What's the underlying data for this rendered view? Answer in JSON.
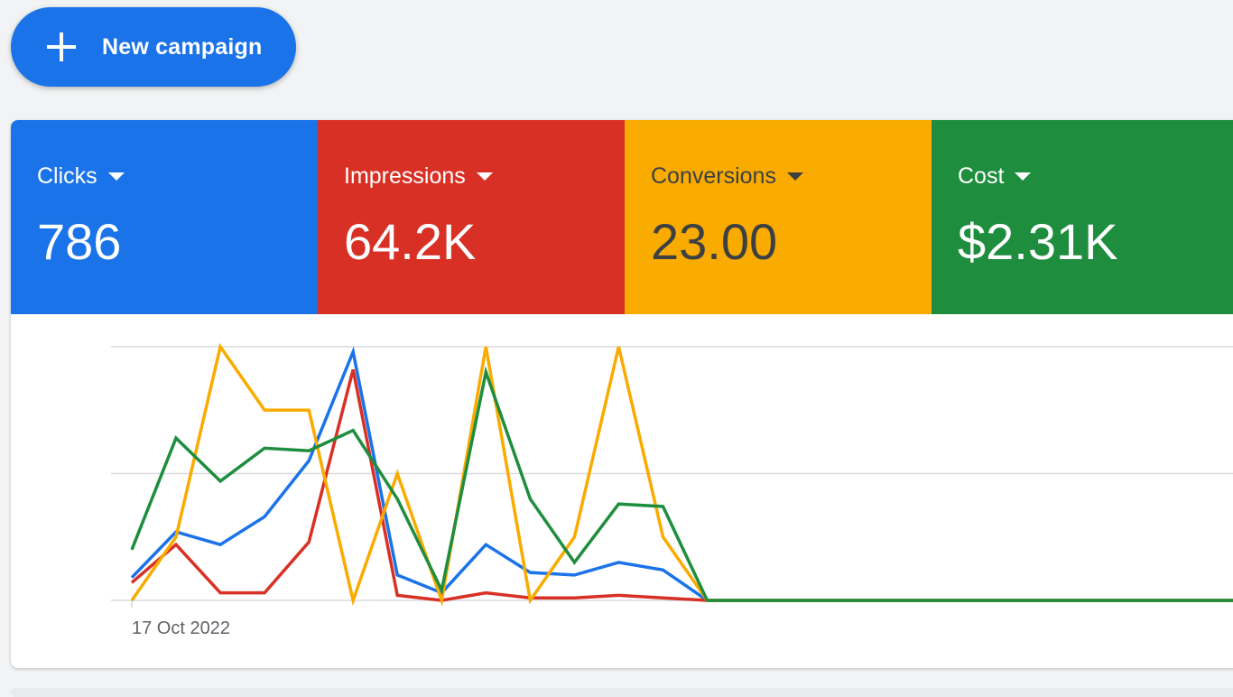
{
  "new_campaign": {
    "label": "New campaign",
    "icon": "plus-icon"
  },
  "metrics": [
    {
      "label": "Clicks",
      "value": "786",
      "color": "#1a73e8",
      "text_color": "#ffffff"
    },
    {
      "label": "Impressions",
      "value": "64.2K",
      "color": "#d93025",
      "text_color": "#ffffff"
    },
    {
      "label": "Conversions",
      "value": "23.00",
      "color": "#f9ab00",
      "text_color": "#3c4043"
    },
    {
      "label": "Cost",
      "value": "$2.31K",
      "color": "#1e8e3e",
      "text_color": "#ffffff"
    }
  ],
  "chart_data": {
    "type": "line",
    "grid": true,
    "legend": "none",
    "x_tick_label": "17 Oct 2022",
    "x_count": 29,
    "ylim": [
      0,
      1
    ],
    "series": [
      {
        "metric": "Clicks",
        "color": "#1a73e8",
        "values": [
          0.09,
          0.27,
          0.22,
          0.33,
          0.55,
          0.98,
          0.1,
          0.03,
          0.22,
          0.11,
          0.1,
          0.15,
          0.12,
          0,
          0,
          0,
          0,
          0,
          0,
          0,
          0,
          0,
          0,
          0,
          0,
          0,
          0,
          0,
          0
        ]
      },
      {
        "metric": "Impressions",
        "color": "#d93025",
        "values": [
          0.07,
          0.22,
          0.03,
          0.03,
          0.23,
          0.91,
          0.02,
          0.0,
          0.03,
          0.01,
          0.01,
          0.02,
          0.01,
          0,
          0,
          0,
          0,
          0,
          0,
          0,
          0,
          0,
          0,
          0,
          0,
          0,
          0,
          0,
          0
        ]
      },
      {
        "metric": "Conversions",
        "color": "#f9ab00",
        "values": [
          0.0,
          0.25,
          1.0,
          0.75,
          0.75,
          0.0,
          0.5,
          0.0,
          1.0,
          0.0,
          0.25,
          1.0,
          0.25,
          0,
          0,
          0,
          0,
          0,
          0,
          0,
          0,
          0,
          0,
          0,
          0,
          0,
          0,
          0,
          0
        ]
      },
      {
        "metric": "Cost",
        "color": "#1e8e3e",
        "values": [
          0.2,
          0.64,
          0.47,
          0.6,
          0.59,
          0.67,
          0.4,
          0.04,
          0.9,
          0.4,
          0.15,
          0.38,
          0.37,
          0,
          0,
          0,
          0,
          0,
          0,
          0,
          0,
          0,
          0,
          0,
          0,
          0,
          0,
          0,
          0
        ]
      }
    ]
  }
}
